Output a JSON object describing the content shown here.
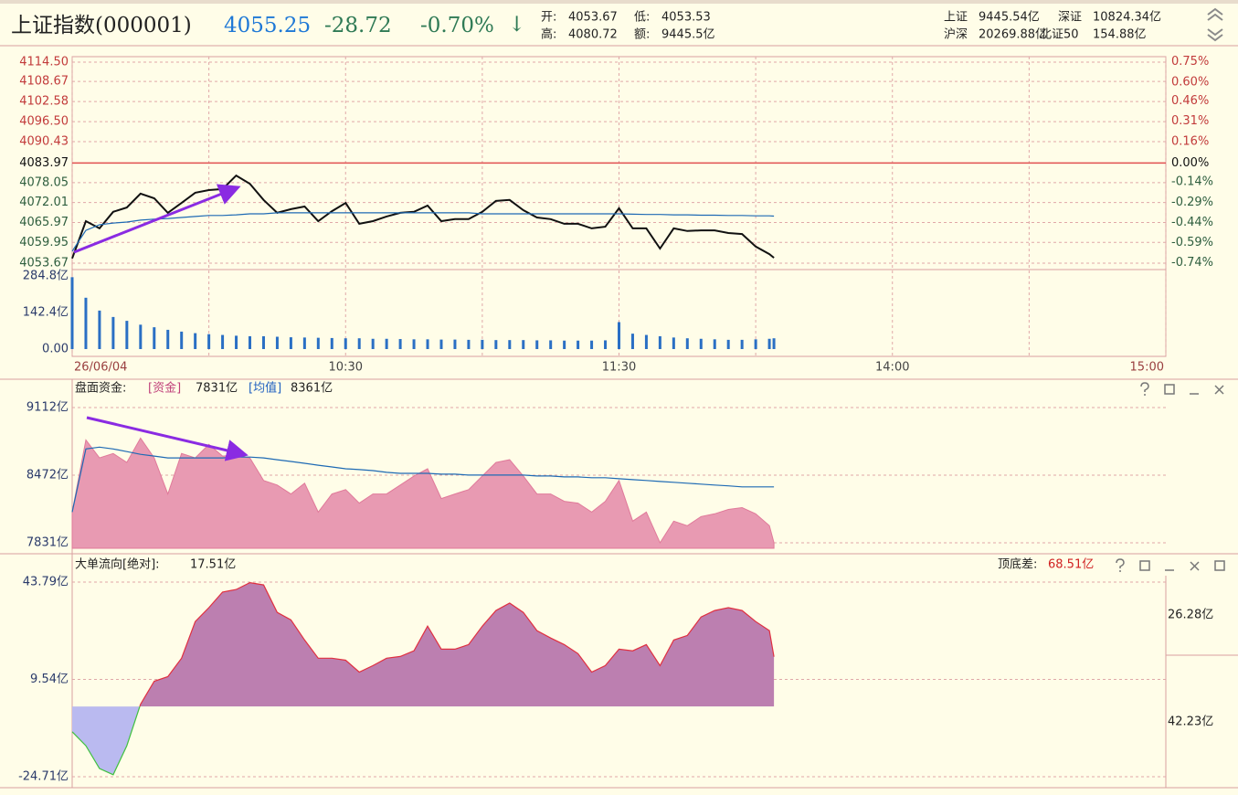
{
  "header": {
    "name": "上证指数(000001)",
    "price": "4055.25",
    "change": "-28.72",
    "change_pct": "-0.70%",
    "arrow": "↓",
    "stats": [
      [
        "开:",
        "4053.67"
      ],
      [
        "低:",
        "4053.53"
      ],
      [
        "高:",
        "4080.72"
      ],
      [
        "额:",
        "9445.5亿"
      ]
    ],
    "market": [
      [
        "上证",
        "9445.54亿"
      ],
      [
        "深证",
        "10824.34亿"
      ],
      [
        "沪深",
        "20269.88亿"
      ],
      [
        "北证50",
        "154.88亿"
      ]
    ]
  },
  "chart_data": [
    {
      "type": "line",
      "x": [
        0,
        3,
        6,
        9,
        12,
        15,
        18,
        21,
        24,
        27,
        30,
        33,
        36,
        39,
        42,
        45,
        48,
        51,
        54,
        57,
        60,
        63,
        66,
        69,
        72,
        75,
        78,
        81,
        84,
        87,
        90,
        93,
        96,
        99,
        102,
        105,
        108,
        111,
        114,
        117,
        120,
        123,
        126,
        129,
        132,
        135,
        138,
        141,
        144,
        147,
        150,
        153,
        154
      ],
      "xlim": [
        0,
        240
      ],
      "xticks": [
        {
          "value": 0,
          "label": "26/06/04"
        },
        {
          "value": 30,
          "label": null
        },
        {
          "value": 60,
          "label": "10:30"
        },
        {
          "value": 90,
          "label": null
        },
        {
          "value": 120,
          "label": "11:30"
        },
        {
          "value": 150,
          "label": null
        },
        {
          "value": 180,
          "label": "14:00"
        },
        {
          "value": 210,
          "label": null
        },
        {
          "value": 240,
          "label": "15:00"
        }
      ],
      "ylim": [
        4053.67,
        4114.5
      ],
      "yticks": [
        {
          "value": 4114.5,
          "label": "4114.50"
        },
        4108.67,
        4102.58,
        {
          "value": 4096.5,
          "label": "4096.50"
        },
        4090.43,
        4083.97,
        4078.05,
        4072.01,
        4065.97,
        4059.95,
        4053.67
      ],
      "y2lim": [
        -0.742,
        0.748
      ],
      "y2ticks": [
        {
          "value": 0.75,
          "label": "0.75%"
        },
        {
          "value": 0.6,
          "label": "0.60%"
        },
        {
          "value": 0.46,
          "label": "0.46%"
        },
        {
          "value": 0.31,
          "label": "0.31%"
        },
        {
          "value": 0.16,
          "label": "0.16%"
        },
        {
          "value": 0,
          "label": "0.00%"
        },
        {
          "value": -0.14,
          "label": "-0.14%"
        },
        {
          "value": -0.29,
          "label": "-0.29%"
        },
        {
          "value": -0.44,
          "label": "-0.44%"
        },
        {
          "value": -0.59,
          "label": "-0.59%"
        },
        {
          "value": -0.74,
          "label": "-0.74%"
        }
      ],
      "grid": true,
      "series": [
        {
          "color": "#111111",
          "values": [
            4055.1,
            4066.4,
            4064.2,
            4069.2,
            4070.5,
            4074.7,
            4073.3,
            4068.9,
            4071.9,
            4075.0,
            4075.8,
            4076.1,
            4080.2,
            4077.7,
            4072.8,
            4068.9,
            4070.0,
            4070.8,
            4066.4,
            4069.4,
            4071.9,
            4065.6,
            4066.4,
            4067.8,
            4068.9,
            4069.2,
            4071.1,
            4066.4,
            4067.0,
            4067.0,
            4069.2,
            4072.5,
            4072.8,
            4069.7,
            4067.5,
            4067.0,
            4065.6,
            4065.6,
            4064.2,
            4064.7,
            4070.3,
            4064.2,
            4064.2,
            4058.1,
            4064.2,
            4063.4,
            4063.6,
            4063.6,
            4062.8,
            4062.5,
            4058.7,
            4056.4,
            4055.3
          ]
        },
        {
          "color": "#1e6ab4",
          "values": [
            4057.3,
            4063.6,
            4065.3,
            4065.8,
            4066.1,
            4066.7,
            4067.0,
            4067.2,
            4067.5,
            4067.8,
            4068.1,
            4068.1,
            4068.3,
            4068.6,
            4068.6,
            4068.9,
            4068.9,
            4068.9,
            4068.9,
            4068.9,
            4068.9,
            4068.9,
            4068.9,
            4068.9,
            4068.9,
            4068.9,
            4068.9,
            4068.9,
            4068.9,
            4068.9,
            4068.6,
            4068.6,
            4068.6,
            4068.6,
            4068.6,
            4068.6,
            4068.6,
            4068.6,
            4068.6,
            4068.6,
            4068.6,
            4068.5,
            4068.4,
            4068.4,
            4068.3,
            4068.3,
            4068.2,
            4068.2,
            4068.1,
            4068.1,
            4068.0,
            4068.0,
            4067.9
          ]
        }
      ]
    },
    {
      "type": "bar",
      "color": "#2a6fc4",
      "ylim": [
        0,
        284.8
      ],
      "yticks": [
        {
          "value": 284.8,
          "label": "284.8亿"
        },
        {
          "value": 142.4,
          "label": "142.4亿"
        },
        {
          "value": 0,
          "label": "0.00"
        }
      ],
      "grid": false,
      "values": [
        280,
        200,
        150,
        125,
        110,
        95,
        85,
        75,
        68,
        62,
        58,
        55,
        52,
        50,
        50,
        48,
        46,
        45,
        44,
        43,
        42,
        42,
        40,
        40,
        39,
        38,
        38,
        37,
        37,
        36,
        36,
        35,
        35,
        35,
        34,
        34,
        33,
        33,
        33,
        34,
        105,
        60,
        55,
        50,
        45,
        42,
        40,
        38,
        36,
        36,
        38,
        40,
        42
      ]
    },
    {
      "type": "area",
      "title": "盘面资金:",
      "ylim": [
        7831,
        9112
      ],
      "yticks": [
        {
          "value": 9112,
          "label": "9112亿"
        },
        {
          "value": 8472,
          "label": "8472亿"
        },
        {
          "value": 7831,
          "label": "7831亿"
        }
      ],
      "grid": true,
      "series": [
        {
          "name": "[资金]",
          "current_label": "7831亿",
          "fill": true,
          "color": "#e89ab2",
          "line_color": "#e07a9a",
          "values": [
            8122,
            8806,
            8635,
            8677,
            8592,
            8823,
            8635,
            8293,
            8677,
            8635,
            8763,
            8652,
            8660,
            8635,
            8421,
            8378,
            8293,
            8395,
            8122,
            8293,
            8335,
            8207,
            8293,
            8293,
            8378,
            8464,
            8532,
            8250,
            8293,
            8335,
            8464,
            8592,
            8618,
            8464,
            8293,
            8293,
            8224,
            8207,
            8122,
            8224,
            8421,
            8036,
            8122,
            7831,
            8036,
            7993,
            8079,
            8105,
            8147,
            8164,
            8105,
            7993,
            7831
          ]
        },
        {
          "name": "[均值]",
          "current_label": "8361亿",
          "fill": false,
          "color": "#1e6ab4",
          "values": [
            8122,
            8720,
            8737,
            8720,
            8695,
            8669,
            8652,
            8635,
            8635,
            8635,
            8635,
            8635,
            8643,
            8643,
            8635,
            8618,
            8601,
            8584,
            8566,
            8549,
            8532,
            8524,
            8515,
            8498,
            8489,
            8489,
            8489,
            8481,
            8481,
            8472,
            8472,
            8472,
            8472,
            8472,
            8464,
            8464,
            8455,
            8455,
            8447,
            8447,
            8438,
            8429,
            8421,
            8412,
            8404,
            8395,
            8387,
            8378,
            8370,
            8361,
            8361,
            8361,
            8361
          ]
        }
      ]
    },
    {
      "type": "area",
      "title": "大单流向[绝对]:",
      "current_label": "17.51亿",
      "spread_title": "顶底差:",
      "spread_label": "68.51亿",
      "right_labels": [
        "26.28亿",
        "42.23亿"
      ],
      "ylim": [
        -24.71,
        43.79
      ],
      "yticks": [
        {
          "value": 43.79,
          "label": "43.79亿"
        },
        {
          "value": 9.54,
          "label": "9.54亿"
        },
        {
          "value": -24.71,
          "label": "-24.71亿"
        }
      ],
      "grid": true,
      "series": [
        {
          "fill": true,
          "color": "#bc7fb0",
          "line_color": "#e03040",
          "negative_color": "#babaf0",
          "negative_line_color": "#40c040",
          "values": [
            -8.9,
            -13.8,
            -21.8,
            -24.0,
            -13.8,
            0.8,
            8.9,
            10.5,
            17.0,
            29.9,
            34.8,
            40.3,
            41.2,
            43.6,
            42.8,
            33.1,
            30.5,
            23.4,
            17.0,
            17.0,
            16.3,
            12.1,
            14.4,
            17.0,
            17.6,
            19.6,
            28.3,
            20.2,
            20.2,
            21.8,
            28.3,
            33.8,
            36.4,
            33.1,
            26.7,
            24.1,
            21.8,
            18.6,
            12.1,
            14.4,
            20.2,
            19.6,
            21.8,
            14.4,
            23.4,
            25.0,
            31.5,
            33.8,
            34.8,
            33.8,
            29.9,
            26.7,
            17.51
          ]
        }
      ]
    }
  ]
}
